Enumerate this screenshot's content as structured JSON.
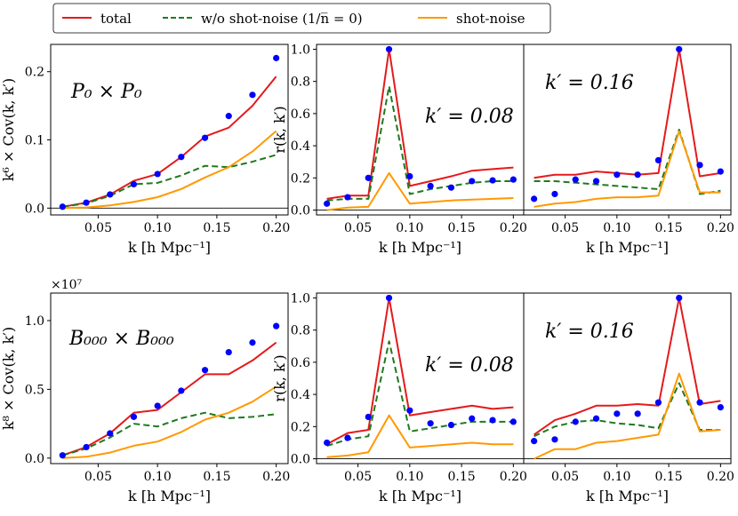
{
  "legend": [
    {
      "label": "total",
      "color": "#e41a1c",
      "style": "solid"
    },
    {
      "label": "w/o shot-noise (1/n̅ = 0)",
      "color": "#1f7a1f",
      "style": "dashed"
    },
    {
      "label": "shot-noise",
      "color": "#ff9900",
      "style": "solid"
    }
  ],
  "colors": {
    "total": "#e41a1c",
    "noshot": "#1f7a1f",
    "shot": "#ff9900",
    "points": "#0000ff"
  },
  "chart_data": [
    {
      "type": "line",
      "panel": "P0xP0-covariance",
      "label": "P₀ × P₀",
      "xlabel": "k  [h Mpc⁻¹]",
      "ylabel": "k⁶ × Cov(k, k′)",
      "xlim": [
        0.01,
        0.21
      ],
      "ylim": [
        -0.01,
        0.24
      ],
      "xticks": [
        0.05,
        0.1,
        0.15,
        0.2
      ],
      "xticklabels": [
        "0.05",
        "0.10",
        "0.15",
        "0.20"
      ],
      "yticks": [
        0.0,
        0.1,
        0.2
      ],
      "yticklabels": [
        "0.0",
        "0.1",
        "0.2"
      ],
      "x": [
        0.02,
        0.04,
        0.06,
        0.08,
        0.1,
        0.12,
        0.14,
        0.16,
        0.18,
        0.2
      ],
      "series": [
        {
          "name": "total",
          "values": [
            0.002,
            0.008,
            0.02,
            0.04,
            0.05,
            0.075,
            0.105,
            0.118,
            0.15,
            0.193
          ]
        },
        {
          "name": "w/o shot-noise",
          "values": [
            0.002,
            0.007,
            0.018,
            0.035,
            0.037,
            0.048,
            0.062,
            0.06,
            0.068,
            0.078
          ]
        },
        {
          "name": "shot-noise",
          "values": [
            0.0,
            0.001,
            0.004,
            0.009,
            0.016,
            0.028,
            0.045,
            0.06,
            0.083,
            0.113
          ]
        }
      ],
      "points": [
        0.002,
        0.008,
        0.02,
        0.035,
        0.05,
        0.075,
        0.103,
        0.135,
        0.166,
        0.22
      ]
    },
    {
      "type": "line",
      "panel": "P0xP0-correlation-k008",
      "label": "k′ = 0.08",
      "xlabel": "k  [h Mpc⁻¹]",
      "ylabel": "r(k, k′)",
      "xlim": [
        0.01,
        0.21
      ],
      "ylim": [
        -0.03,
        1.03
      ],
      "xticks": [
        0.05,
        0.1,
        0.15,
        0.2
      ],
      "xticklabels": [
        "0.05",
        "0.10",
        "0.15",
        "0.20"
      ],
      "yticks": [
        0.0,
        0.2,
        0.4,
        0.6,
        0.8,
        1.0
      ],
      "yticklabels": [
        "0.0",
        "0.2",
        "0.4",
        "0.6",
        "0.8",
        "1.0"
      ],
      "x": [
        0.02,
        0.04,
        0.06,
        0.08,
        0.1,
        0.12,
        0.14,
        0.16,
        0.18,
        0.2
      ],
      "series": [
        {
          "name": "total",
          "values": [
            0.07,
            0.09,
            0.09,
            1.0,
            0.15,
            0.18,
            0.21,
            0.245,
            0.255,
            0.265
          ]
        },
        {
          "name": "w/o shot-noise",
          "values": [
            0.06,
            0.07,
            0.07,
            0.77,
            0.1,
            0.13,
            0.15,
            0.17,
            0.18,
            0.18
          ]
        },
        {
          "name": "shot-noise",
          "values": [
            0.0,
            0.015,
            0.02,
            0.23,
            0.04,
            0.05,
            0.06,
            0.065,
            0.07,
            0.075
          ]
        }
      ],
      "points": [
        0.04,
        0.08,
        0.2,
        1.0,
        0.21,
        0.15,
        0.14,
        0.18,
        0.185,
        0.19
      ]
    },
    {
      "type": "line",
      "panel": "P0xP0-correlation-k016",
      "label": "k′ = 0.16",
      "xlabel": "k  [h Mpc⁻¹]",
      "ylabel": "",
      "xlim": [
        0.01,
        0.21
      ],
      "ylim": [
        -0.03,
        1.03
      ],
      "xticks": [
        0.05,
        0.1,
        0.15,
        0.2
      ],
      "xticklabels": [
        "0.05",
        "0.10",
        "0.15",
        "0.20"
      ],
      "yticks": [],
      "yticklabels": [],
      "x": [
        0.02,
        0.04,
        0.06,
        0.08,
        0.1,
        0.12,
        0.14,
        0.16,
        0.18,
        0.2
      ],
      "series": [
        {
          "name": "total",
          "values": [
            0.2,
            0.22,
            0.22,
            0.24,
            0.23,
            0.22,
            0.23,
            1.0,
            0.21,
            0.23
          ]
        },
        {
          "name": "w/o shot-noise",
          "values": [
            0.18,
            0.18,
            0.17,
            0.16,
            0.15,
            0.14,
            0.13,
            0.5,
            0.1,
            0.12
          ]
        },
        {
          "name": "shot-noise",
          "values": [
            0.02,
            0.04,
            0.05,
            0.07,
            0.08,
            0.08,
            0.09,
            0.49,
            0.11,
            0.11
          ]
        }
      ],
      "points": [
        0.07,
        0.1,
        0.19,
        0.18,
        0.22,
        0.22,
        0.31,
        1.0,
        0.28,
        0.24
      ]
    },
    {
      "type": "line",
      "panel": "B000xB000-covariance",
      "label": "B₀₀₀ × B₀₀₀",
      "xlabel": "k  [h Mpc⁻¹]",
      "ylabel": "k⁸ × Cov(k, k′)",
      "scale": "×10⁷",
      "xlim": [
        0.01,
        0.21
      ],
      "ylim": [
        -0.04,
        1.2
      ],
      "xticks": [
        0.05,
        0.1,
        0.15,
        0.2
      ],
      "xticklabels": [
        "0.05",
        "0.10",
        "0.15",
        "0.20"
      ],
      "yticks": [
        0.0,
        0.5,
        1.0
      ],
      "yticklabels": [
        "0.0",
        "0.5",
        "1.0"
      ],
      "x": [
        0.02,
        0.04,
        0.06,
        0.08,
        0.1,
        0.12,
        0.14,
        0.16,
        0.18,
        0.2
      ],
      "series": [
        {
          "name": "total",
          "values": [
            0.02,
            0.08,
            0.18,
            0.33,
            0.35,
            0.48,
            0.61,
            0.61,
            0.71,
            0.84
          ]
        },
        {
          "name": "w/o shot-noise",
          "values": [
            0.02,
            0.07,
            0.15,
            0.25,
            0.23,
            0.29,
            0.33,
            0.29,
            0.3,
            0.32
          ]
        },
        {
          "name": "shot-noise",
          "values": [
            0.0,
            0.01,
            0.04,
            0.09,
            0.12,
            0.19,
            0.28,
            0.33,
            0.41,
            0.52
          ]
        }
      ],
      "points": [
        0.02,
        0.08,
        0.18,
        0.3,
        0.38,
        0.49,
        0.64,
        0.77,
        0.84,
        0.96
      ]
    },
    {
      "type": "line",
      "panel": "B000xB000-correlation-k008",
      "label": "k′ = 0.08",
      "xlabel": "k  [h Mpc⁻¹]",
      "ylabel": "r(k, k′)",
      "xlim": [
        0.01,
        0.21
      ],
      "ylim": [
        -0.03,
        1.03
      ],
      "xticks": [
        0.05,
        0.1,
        0.15,
        0.2
      ],
      "xticklabels": [
        "0.05",
        "0.10",
        "0.15",
        "0.20"
      ],
      "yticks": [
        0.0,
        0.2,
        0.4,
        0.6,
        0.8,
        1.0
      ],
      "yticklabels": [
        "0.0",
        "0.2",
        "0.4",
        "0.6",
        "0.8",
        "1.0"
      ],
      "x": [
        0.02,
        0.04,
        0.06,
        0.08,
        0.1,
        0.12,
        0.14,
        0.16,
        0.18,
        0.2
      ],
      "series": [
        {
          "name": "total",
          "values": [
            0.09,
            0.16,
            0.18,
            1.0,
            0.27,
            0.29,
            0.31,
            0.33,
            0.31,
            0.32
          ]
        },
        {
          "name": "w/o shot-noise",
          "values": [
            0.08,
            0.12,
            0.14,
            0.73,
            0.17,
            0.19,
            0.21,
            0.23,
            0.23,
            0.23
          ]
        },
        {
          "name": "shot-noise",
          "values": [
            0.01,
            0.02,
            0.04,
            0.27,
            0.07,
            0.08,
            0.09,
            0.1,
            0.09,
            0.09
          ]
        }
      ],
      "points": [
        0.1,
        0.13,
        0.26,
        1.0,
        0.3,
        0.22,
        0.21,
        0.25,
        0.24,
        0.23
      ]
    },
    {
      "type": "line",
      "panel": "B000xB000-correlation-k016",
      "label": "k′ = 0.16",
      "xlabel": "k  [h Mpc⁻¹]",
      "ylabel": "",
      "xlim": [
        0.01,
        0.21
      ],
      "ylim": [
        -0.03,
        1.03
      ],
      "xticks": [
        0.05,
        0.1,
        0.15,
        0.2
      ],
      "xticklabels": [
        "0.05",
        "0.10",
        "0.15",
        "0.20"
      ],
      "yticks": [],
      "yticklabels": [],
      "x": [
        0.02,
        0.04,
        0.06,
        0.08,
        0.1,
        0.12,
        0.14,
        0.16,
        0.18,
        0.2
      ],
      "series": [
        {
          "name": "total",
          "values": [
            0.15,
            0.24,
            0.28,
            0.33,
            0.33,
            0.34,
            0.33,
            1.0,
            0.34,
            0.36
          ]
        },
        {
          "name": "w/o shot-noise",
          "values": [
            0.14,
            0.2,
            0.23,
            0.24,
            0.22,
            0.21,
            0.19,
            0.47,
            0.18,
            0.18
          ]
        },
        {
          "name": "shot-noise",
          "values": [
            0.0,
            0.06,
            0.06,
            0.1,
            0.11,
            0.13,
            0.15,
            0.53,
            0.17,
            0.18
          ]
        }
      ],
      "points": [
        0.11,
        0.12,
        0.23,
        0.25,
        0.28,
        0.28,
        0.35,
        1.0,
        0.35,
        0.32
      ]
    }
  ]
}
